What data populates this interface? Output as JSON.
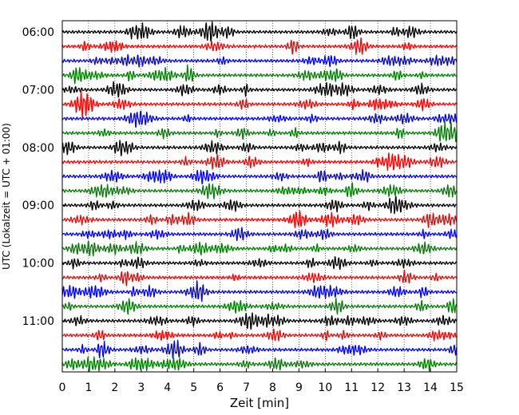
{
  "chart_data": {
    "type": "line",
    "subtype": "helicorder",
    "xlabel": "Zeit  [min]",
    "ylabel": "UTC (Lokalzeit = UTC + 01:00)",
    "xlim": [
      0,
      15
    ],
    "x_ticks": [
      "0",
      "1",
      "2",
      "3",
      "4",
      "5",
      "6",
      "7",
      "8",
      "9",
      "10",
      "11",
      "12",
      "13",
      "14",
      "15"
    ],
    "y_tick_labels": [
      "06:00",
      "07:00",
      "08:00",
      "09:00",
      "10:00",
      "11:00"
    ],
    "rows_per_hour": 4,
    "row_count": 24,
    "minutes_per_row": 15,
    "start_time": "06:00",
    "trace_colors": [
      "#000000",
      "#ff0000",
      "#0000ff",
      "#008000"
    ],
    "vertical_grid": "dotted",
    "legend": "none"
  }
}
